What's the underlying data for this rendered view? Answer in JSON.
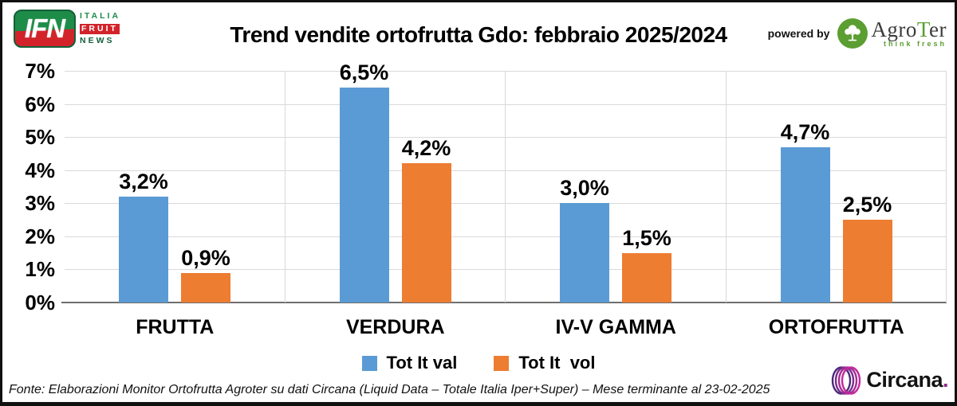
{
  "header": {
    "logo": {
      "abbr": "IFN",
      "line1": "ITALIA",
      "line2": "FRUIT",
      "line3": "NEWS",
      "green": "#1e8c49",
      "red": "#d2232b"
    },
    "title": "Trend vendite ortofrutta Gdo: febbraio 2025/2024",
    "powered_by": "powered by",
    "agroter": {
      "name_part1": "Agro",
      "name_part2": "T",
      "name_part3": "er",
      "tagline": "think fresh",
      "green": "#5b9e31"
    }
  },
  "chart_data": {
    "type": "bar",
    "title": "Trend vendite ortofrutta Gdo: febbraio 2025/2024",
    "categories": [
      "FRUTTA",
      "VERDURA",
      "IV-V GAMMA",
      "ORTOFRUTTA"
    ],
    "series": [
      {
        "name": "Tot It val",
        "color": "#5B9BD5",
        "values": [
          3.2,
          6.5,
          3.0,
          4.7
        ],
        "labels": [
          "3,2%",
          "6,5%",
          "3,0%",
          "4,7%"
        ]
      },
      {
        "name": "Tot It  vol",
        "color": "#ED7D31",
        "values": [
          0.9,
          4.2,
          1.5,
          2.5
        ],
        "labels": [
          "0,9%",
          "4,2%",
          "1,5%",
          "2,5%"
        ]
      }
    ],
    "y_axis": {
      "min": 0,
      "max": 7,
      "step": 1,
      "tick_labels": [
        "0%",
        "1%",
        "2%",
        "3%",
        "4%",
        "5%",
        "6%",
        "7%"
      ]
    },
    "grid": true,
    "gridline_color": "#d9d9d9",
    "axis_line_color": "#6e6e6e",
    "legend_position": "bottom"
  },
  "footer": {
    "source": "Fonte: Elaborazioni Monitor Ortofrutta Agroter su dati Circana (Liquid Data – Totale Italia Iper+Super) – Mese terminante al 23-02-2025",
    "circana": {
      "text": "Circana",
      "dot": ".",
      "purple": "#8d2d8e"
    }
  }
}
